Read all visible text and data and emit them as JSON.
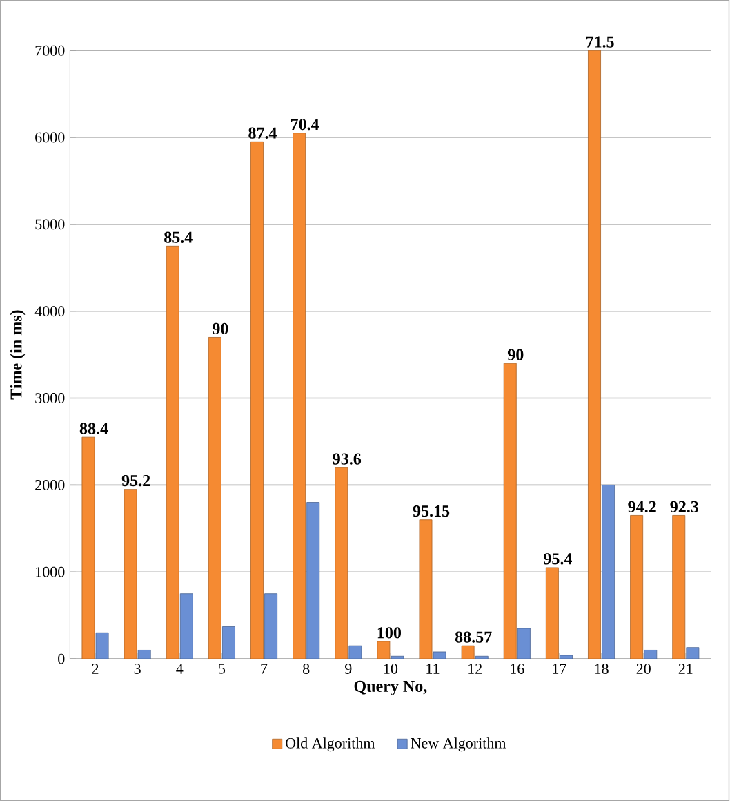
{
  "chart_data": {
    "type": "bar",
    "xlabel": "Query No,",
    "ylabel": "Time (in ms)",
    "categories": [
      "2",
      "3",
      "4",
      "5",
      "7",
      "8",
      "9",
      "10",
      "11",
      "12",
      "16",
      "17",
      "18",
      "20",
      "21"
    ],
    "series": [
      {
        "name": "Old Algorithm",
        "color": "#f58a32",
        "values": [
          2550,
          1950,
          4750,
          3700,
          5950,
          6050,
          2200,
          200,
          1600,
          150,
          3400,
          1050,
          7000,
          1650,
          1650
        ]
      },
      {
        "name": "New Algorithm",
        "color": "#6a8fd4",
        "values": [
          300,
          100,
          750,
          370,
          750,
          1800,
          150,
          30,
          80,
          30,
          350,
          40,
          2000,
          100,
          130
        ]
      }
    ],
    "annotations": [
      {
        "text": "88.4",
        "x": "2",
        "y": 2550
      },
      {
        "text": "95.2",
        "x": "3",
        "y": 1950
      },
      {
        "text": "85.4",
        "x": "4",
        "y": 4750
      },
      {
        "text": "90",
        "x": "5",
        "y": 3700
      },
      {
        "text": "87.4",
        "x": "7",
        "y": 5950
      },
      {
        "text": "70.4",
        "x": "8",
        "y": 6050
      },
      {
        "text": "93.6",
        "x": "9",
        "y": 2200
      },
      {
        "text": "100",
        "x": "10",
        "y": 200
      },
      {
        "text": "95.15",
        "x": "11",
        "y": 1600
      },
      {
        "text": "88.57",
        "x": "12",
        "y": 150
      },
      {
        "text": "90",
        "x": "16",
        "y": 3400
      },
      {
        "text": "95.4",
        "x": "17",
        "y": 1050
      },
      {
        "text": "71.5",
        "x": "18",
        "y": 7000
      },
      {
        "text": "94.2",
        "x": "20",
        "y": 1650
      },
      {
        "text": "92.3",
        "x": "21",
        "y": 1650
      }
    ],
    "ylim": [
      0,
      7000
    ],
    "yticks": [
      0,
      1000,
      2000,
      3000,
      4000,
      5000,
      6000,
      7000
    ],
    "grid": "y",
    "legend": "bottom"
  }
}
